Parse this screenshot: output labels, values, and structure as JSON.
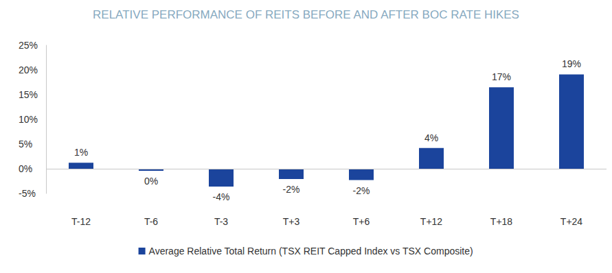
{
  "chart_data": {
    "type": "bar",
    "title": "RELATIVE PERFORMANCE OF REITS BEFORE AND AFTER BOC RATE HIKES",
    "categories": [
      "T-12",
      "T-6",
      "T-3",
      "T+3",
      "T+6",
      "T+12",
      "T+18",
      "T+24"
    ],
    "series": [
      {
        "name": "Average Relative Total Return (TSX REIT Capped Index vs TSX Composite)",
        "color": "#1b449c",
        "values": [
          1.2,
          -0.4,
          -3.6,
          -2.1,
          -2.3,
          4.2,
          16.5,
          19.1
        ],
        "value_labels": [
          "1%",
          "0%",
          "-4%",
          "-2%",
          "-2%",
          "4%",
          "17%",
          "19%"
        ]
      }
    ],
    "ylim": [
      -5,
      25
    ],
    "yticks": [
      {
        "value": -5,
        "label": "-5%"
      },
      {
        "value": 0,
        "label": "0%"
      },
      {
        "value": 5,
        "label": "5%"
      },
      {
        "value": 10,
        "label": "10%"
      },
      {
        "value": 15,
        "label": "15%"
      },
      {
        "value": 20,
        "label": "20%"
      },
      {
        "value": 25,
        "label": "25%"
      }
    ],
    "grid": false,
    "legend": "bottom",
    "data_labels": true
  }
}
